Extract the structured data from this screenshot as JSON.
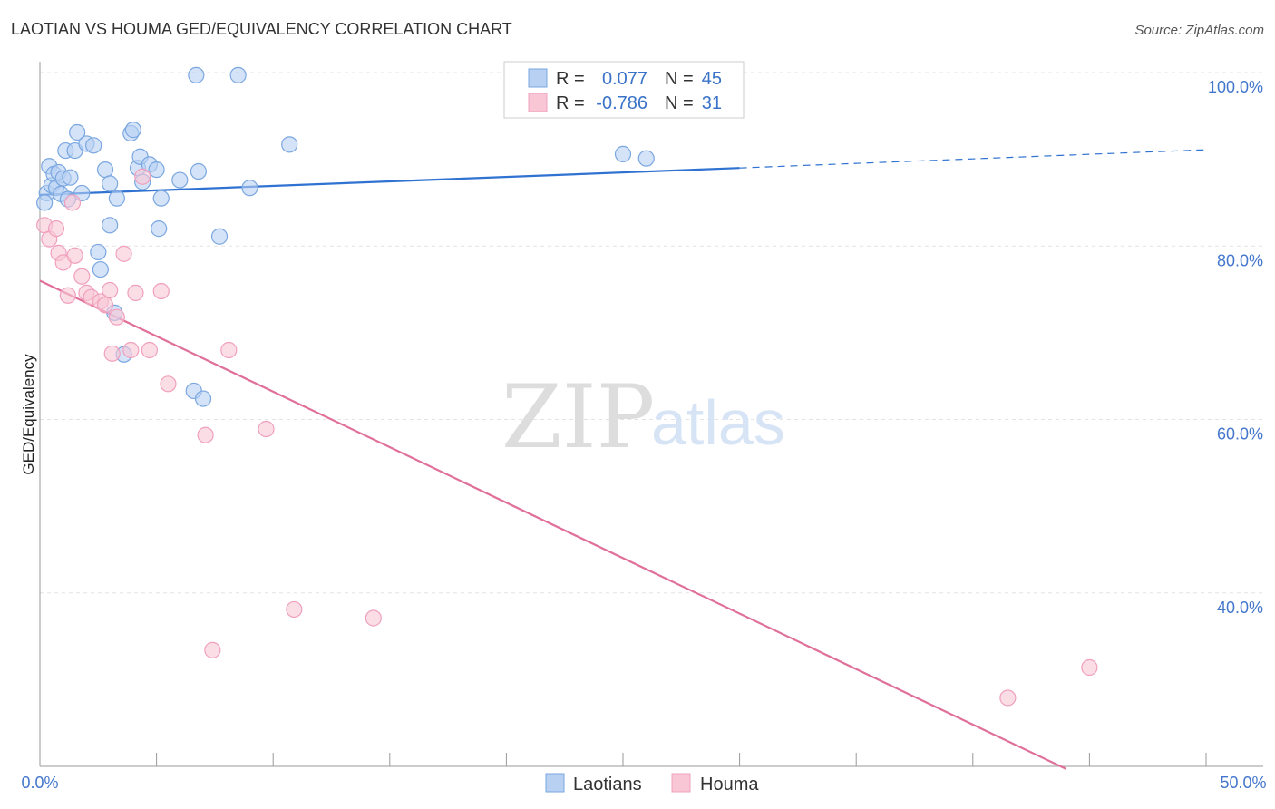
{
  "title": "LAOTIAN VS HOUMA GED/EQUIVALENCY CORRELATION CHART",
  "source": "Source: ZipAtlas.com",
  "watermark": {
    "zip": "ZIP",
    "atlas": "atlas"
  },
  "legend": {
    "rows": [
      {
        "r_label": "R =",
        "r_value": "0.077",
        "n_label": "N =",
        "n_value": "45",
        "color": "#b8d1f3"
      },
      {
        "r_label": "R =",
        "r_value": "-0.786",
        "n_label": "N =",
        "n_value": "31",
        "color": "#f9c6d6"
      }
    ]
  },
  "chart_data": {
    "type": "scatter",
    "title": "LAOTIAN VS HOUMA GED/EQUIVALENCY CORRELATION CHART",
    "xlabel": "",
    "ylabel": "GED/Equivalency",
    "xlim": [
      0,
      50
    ],
    "ylim": [
      20,
      102
    ],
    "x_tick_labels": [
      "0.0%",
      "50.0%"
    ],
    "y_ticks": [
      40,
      60,
      80,
      100
    ],
    "y_tick_labels": [
      "40.0%",
      "60.0%",
      "80.0%",
      "100.0%"
    ],
    "grid": true,
    "series": [
      {
        "name": "Laotians",
        "color": "#7aa7e0",
        "fill": "#b8d1f3",
        "line_color": "#2f72d1",
        "trend": {
          "x0": 0,
          "y0": 85.9,
          "x1": 30,
          "y1": 89.0,
          "dash_to_x": 50,
          "dash_to_y": 91.1
        },
        "points": [
          [
            0.3,
            86.1
          ],
          [
            0.4,
            89.2
          ],
          [
            0.5,
            87.0
          ],
          [
            0.6,
            88.3
          ],
          [
            0.7,
            86.7
          ],
          [
            0.8,
            88.5
          ],
          [
            0.9,
            86.0
          ],
          [
            1.0,
            87.8
          ],
          [
            1.1,
            91.0
          ],
          [
            1.2,
            85.4
          ],
          [
            1.3,
            87.9
          ],
          [
            1.5,
            91.0
          ],
          [
            1.6,
            93.1
          ],
          [
            1.8,
            86.1
          ],
          [
            2.0,
            91.8
          ],
          [
            2.3,
            91.6
          ],
          [
            2.5,
            79.3
          ],
          [
            2.6,
            77.3
          ],
          [
            2.8,
            88.8
          ],
          [
            3.0,
            87.2
          ],
          [
            3.0,
            82.4
          ],
          [
            3.2,
            72.3
          ],
          [
            3.3,
            85.5
          ],
          [
            3.6,
            67.5
          ],
          [
            3.9,
            93.0
          ],
          [
            4.0,
            93.4
          ],
          [
            4.2,
            89.0
          ],
          [
            4.3,
            90.3
          ],
          [
            4.4,
            87.4
          ],
          [
            4.7,
            89.4
          ],
          [
            5.0,
            88.8
          ],
          [
            5.1,
            82.0
          ],
          [
            5.2,
            85.5
          ],
          [
            6.0,
            87.6
          ],
          [
            6.6,
            63.3
          ],
          [
            6.7,
            99.7
          ],
          [
            6.8,
            88.6
          ],
          [
            7.0,
            62.4
          ],
          [
            7.7,
            81.1
          ],
          [
            8.5,
            99.7
          ],
          [
            9.0,
            86.7
          ],
          [
            10.7,
            91.7
          ],
          [
            25.0,
            90.6
          ],
          [
            26.0,
            90.1
          ],
          [
            0.2,
            85.0
          ]
        ]
      },
      {
        "name": "Houma",
        "color": "#f0a0bd",
        "fill": "#f9c6d6",
        "line_color": "#e0709a",
        "trend": {
          "x0": 0,
          "y0": 76.0,
          "x1": 44,
          "y1": 19.7
        },
        "points": [
          [
            0.2,
            82.4
          ],
          [
            0.4,
            80.8
          ],
          [
            0.7,
            82.0
          ],
          [
            0.8,
            79.2
          ],
          [
            1.0,
            78.1
          ],
          [
            1.2,
            74.3
          ],
          [
            1.4,
            85.0
          ],
          [
            1.5,
            78.9
          ],
          [
            1.8,
            76.5
          ],
          [
            2.0,
            74.6
          ],
          [
            2.2,
            74.1
          ],
          [
            2.6,
            73.6
          ],
          [
            2.8,
            73.2
          ],
          [
            3.0,
            74.9
          ],
          [
            3.1,
            67.6
          ],
          [
            3.3,
            71.8
          ],
          [
            3.6,
            79.1
          ],
          [
            3.9,
            68.0
          ],
          [
            4.1,
            74.6
          ],
          [
            4.4,
            88.0
          ],
          [
            4.7,
            68.0
          ],
          [
            5.2,
            74.8
          ],
          [
            5.5,
            64.1
          ],
          [
            7.1,
            58.2
          ],
          [
            7.4,
            33.4
          ],
          [
            8.1,
            68.0
          ],
          [
            9.7,
            58.9
          ],
          [
            10.9,
            38.1
          ],
          [
            14.3,
            37.1
          ],
          [
            41.5,
            27.9
          ],
          [
            45.0,
            31.4
          ]
        ]
      }
    ]
  }
}
